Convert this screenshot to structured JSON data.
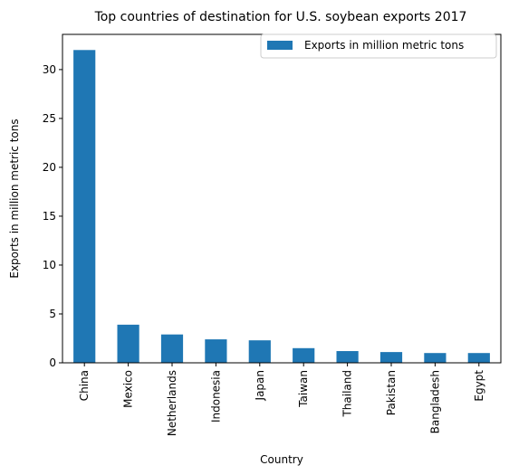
{
  "chart_data": {
    "type": "bar",
    "title": "Top countries of destination for U.S. soybean exports 2017",
    "xlabel": "Country",
    "ylabel": "Exports in million metric tons",
    "categories": [
      "China",
      "Mexico",
      "Netherlands",
      "Indonesia",
      "Japan",
      "Taiwan",
      "Thailand",
      "Pakistan",
      "Bangladesh",
      "Egypt"
    ],
    "series": [
      {
        "name": "Exports in million metric tons",
        "values": [
          32.0,
          3.9,
          2.9,
          2.4,
          2.3,
          1.5,
          1.2,
          1.1,
          1.0,
          1.0
        ],
        "color": "#1f77b4"
      }
    ],
    "ylim": [
      0,
      33.6
    ],
    "yticks": [
      "0",
      "5",
      "10",
      "15",
      "20",
      "25",
      "30"
    ],
    "grid": false,
    "legend": "top-right"
  }
}
